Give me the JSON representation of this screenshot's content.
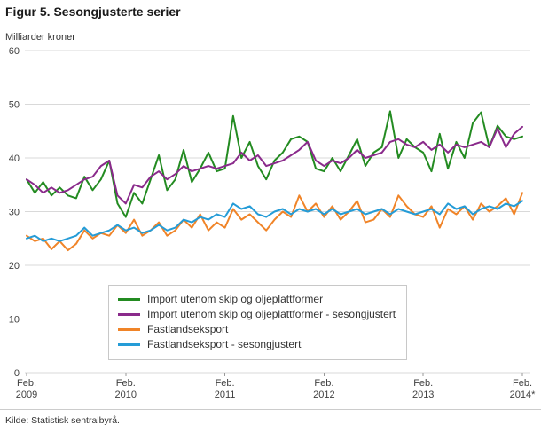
{
  "chart_data": {
    "type": "line",
    "title": "Figur 5. Sesongjusterte serier",
    "ylabel": "Milliarder kroner",
    "source": "Kilde: Statistisk sentralbyrå.",
    "ylim": [
      0,
      60
    ],
    "yticks": [
      0,
      10,
      20,
      30,
      40,
      50,
      60
    ],
    "grid": true,
    "legend_position": "inside-bottom-left",
    "x_unit": "month",
    "x_range": "Feb. 2009 – Feb. 2014",
    "xticks": [
      {
        "index": 0,
        "month": "Feb.",
        "year": "2009"
      },
      {
        "index": 12,
        "month": "Feb.",
        "year": "2010"
      },
      {
        "index": 24,
        "month": "Feb.",
        "year": "2011"
      },
      {
        "index": 36,
        "month": "Feb.",
        "year": "2012"
      },
      {
        "index": 48,
        "month": "Feb.",
        "year": "2013"
      },
      {
        "index": 60,
        "month": "Feb.",
        "year": "2014*"
      }
    ],
    "series": [
      {
        "name": "Import utenom skip og oljeplattformer",
        "color": "#238b21",
        "values": [
          36.0,
          33.5,
          35.5,
          33.0,
          34.5,
          33.0,
          32.5,
          36.5,
          34.0,
          36.0,
          39.5,
          31.5,
          29.0,
          33.5,
          31.5,
          36.0,
          40.5,
          34.0,
          36.0,
          41.5,
          35.5,
          38.0,
          41.0,
          37.5,
          38.0,
          47.8,
          40.0,
          43.0,
          38.5,
          36.0,
          39.5,
          41.0,
          43.5,
          44.0,
          43.0,
          38.0,
          37.5,
          40.0,
          37.5,
          40.5,
          43.5,
          38.5,
          41.0,
          42.0,
          48.7,
          40.0,
          43.5,
          42.0,
          41.0,
          37.5,
          44.5,
          38.0,
          43.0,
          40.0,
          46.5,
          48.5,
          42.0,
          46.0,
          44.0,
          43.5,
          44.0
        ]
      },
      {
        "name": "Import utenom skip og oljeplattformer - sesongjustert",
        "color": "#8a2a8b",
        "values": [
          36.0,
          35.0,
          33.5,
          34.5,
          33.5,
          34.0,
          35.0,
          36.0,
          36.5,
          38.5,
          39.5,
          33.0,
          31.5,
          35.0,
          34.5,
          36.5,
          37.5,
          36.0,
          37.0,
          38.5,
          37.5,
          38.0,
          38.5,
          38.0,
          38.5,
          39.0,
          41.0,
          39.5,
          40.5,
          38.5,
          39.0,
          39.5,
          40.5,
          41.5,
          43.0,
          39.5,
          38.5,
          39.5,
          39.0,
          40.0,
          41.5,
          40.0,
          40.5,
          41.0,
          43.0,
          43.5,
          42.5,
          42.0,
          43.0,
          41.5,
          42.5,
          41.0,
          42.5,
          42.0,
          42.5,
          43.0,
          42.0,
          45.5,
          42.0,
          44.5,
          45.8
        ]
      },
      {
        "name": "Fastlandseksport",
        "color": "#f08428",
        "values": [
          25.5,
          24.5,
          25.0,
          23.0,
          24.5,
          22.8,
          24.0,
          26.5,
          25.0,
          26.0,
          25.5,
          27.5,
          26.0,
          28.5,
          25.5,
          26.5,
          28.0,
          25.5,
          26.5,
          28.5,
          27.0,
          29.5,
          26.5,
          28.0,
          27.0,
          30.5,
          28.5,
          29.5,
          28.0,
          26.5,
          28.5,
          30.0,
          29.0,
          33.0,
          30.0,
          31.5,
          29.0,
          31.0,
          28.5,
          30.0,
          32.0,
          28.0,
          28.5,
          30.5,
          29.0,
          33.0,
          31.0,
          29.5,
          29.0,
          31.0,
          27.0,
          30.5,
          29.5,
          31.0,
          28.5,
          31.5,
          30.0,
          31.0,
          32.5,
          29.5,
          33.5
        ]
      },
      {
        "name": "Fastlandseksport - sesongjustert",
        "color": "#259cd7",
        "values": [
          25.0,
          25.5,
          24.5,
          25.0,
          24.5,
          25.0,
          25.5,
          27.0,
          25.5,
          26.0,
          26.5,
          27.5,
          26.5,
          27.0,
          26.0,
          26.5,
          27.5,
          26.5,
          27.0,
          28.5,
          28.0,
          29.0,
          28.5,
          29.5,
          29.0,
          31.5,
          30.5,
          31.0,
          29.5,
          29.0,
          30.0,
          30.5,
          29.5,
          30.5,
          30.0,
          30.5,
          29.5,
          30.5,
          29.5,
          30.0,
          30.5,
          29.5,
          30.0,
          30.5,
          29.5,
          30.5,
          30.0,
          29.5,
          30.0,
          30.5,
          29.5,
          31.5,
          30.5,
          31.0,
          29.5,
          30.5,
          31.0,
          30.5,
          31.5,
          31.0,
          32.0
        ]
      }
    ],
    "style": {
      "grid_color": "#d9d9d9",
      "tick_text_color": "#404040",
      "line_width": 2
    }
  }
}
